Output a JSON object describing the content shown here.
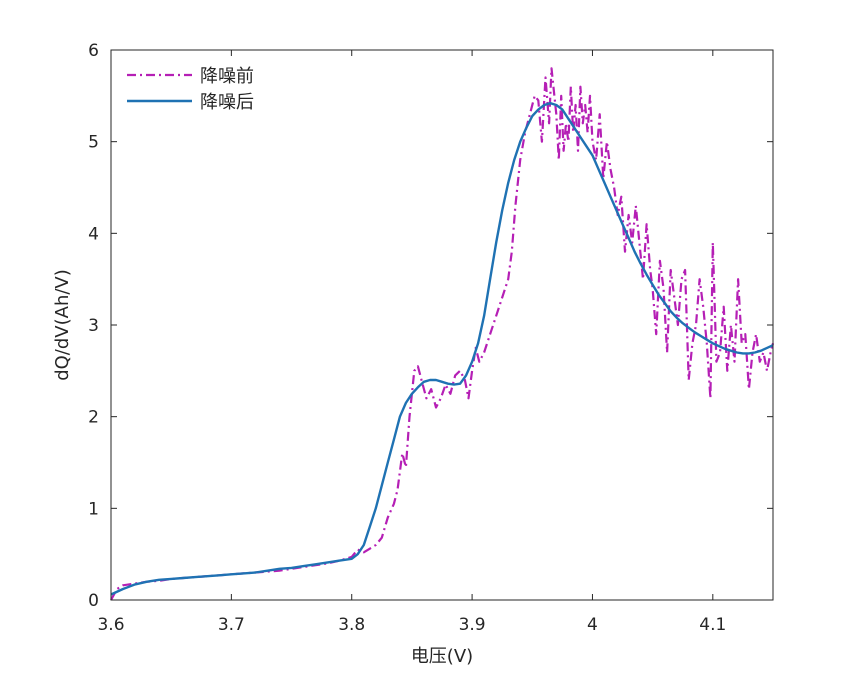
{
  "colors": {
    "before": "#B51FB5",
    "after": "#1F72B3",
    "axis": "#262626",
    "background": "#FFFFFF"
  },
  "chart_data": {
    "type": "line",
    "title": "",
    "xlabel": "电压(V)",
    "ylabel": "dQ/dV(Ah/V)",
    "xlim": [
      3.6,
      4.15
    ],
    "ylim": [
      0,
      6
    ],
    "xticks": [
      3.6,
      3.7,
      3.8,
      3.9,
      4.0,
      4.1
    ],
    "xtick_labels": [
      "3.6",
      "3.7",
      "3.8",
      "3.9",
      "4",
      "4.1"
    ],
    "yticks": [
      0,
      1,
      2,
      3,
      4,
      5,
      6
    ],
    "ytick_labels": [
      "0",
      "1",
      "2",
      "3",
      "4",
      "5",
      "6"
    ],
    "grid": false,
    "legend_position": "top-left",
    "series": [
      {
        "name": "降噪前",
        "style": "dash-dot",
        "color": "#B51FB5",
        "x": [
          3.6,
          3.605,
          3.61,
          3.62,
          3.63,
          3.64,
          3.65,
          3.66,
          3.67,
          3.68,
          3.69,
          3.7,
          3.71,
          3.72,
          3.73,
          3.74,
          3.75,
          3.76,
          3.77,
          3.78,
          3.79,
          3.8,
          3.805,
          3.81,
          3.815,
          3.82,
          3.825,
          3.83,
          3.835,
          3.838,
          3.842,
          3.845,
          3.848,
          3.852,
          3.855,
          3.858,
          3.862,
          3.866,
          3.87,
          3.874,
          3.878,
          3.882,
          3.886,
          3.89,
          3.894,
          3.897,
          3.9,
          3.903,
          3.906,
          3.91,
          3.915,
          3.92,
          3.925,
          3.93,
          3.933,
          3.936,
          3.94,
          3.944,
          3.948,
          3.952,
          3.955,
          3.958,
          3.961,
          3.964,
          3.966,
          3.968,
          3.97,
          3.972,
          3.974,
          3.976,
          3.978,
          3.98,
          3.982,
          3.984,
          3.986,
          3.988,
          3.99,
          3.992,
          3.994,
          3.996,
          3.998,
          4.0,
          4.003,
          4.006,
          4.009,
          4.012,
          4.015,
          4.018,
          4.021,
          4.024,
          4.027,
          4.03,
          4.033,
          4.036,
          4.039,
          4.042,
          4.045,
          4.048,
          4.05,
          4.053,
          4.056,
          4.059,
          4.062,
          4.065,
          4.068,
          4.071,
          4.074,
          4.077,
          4.08,
          4.083,
          4.086,
          4.089,
          4.092,
          4.095,
          4.098,
          4.1,
          4.103,
          4.106,
          4.109,
          4.112,
          4.115,
          4.118,
          4.121,
          4.124,
          4.127,
          4.13,
          4.133,
          4.136,
          4.139,
          4.142,
          4.145,
          4.148,
          4.15
        ],
        "y": [
          0.0,
          0.12,
          0.16,
          0.18,
          0.2,
          0.21,
          0.23,
          0.24,
          0.25,
          0.26,
          0.27,
          0.28,
          0.29,
          0.3,
          0.31,
          0.32,
          0.34,
          0.36,
          0.38,
          0.4,
          0.43,
          0.47,
          0.55,
          0.52,
          0.56,
          0.6,
          0.68,
          0.9,
          1.05,
          1.2,
          1.6,
          1.45,
          2.0,
          2.5,
          2.55,
          2.4,
          2.2,
          2.3,
          2.1,
          2.2,
          2.35,
          2.25,
          2.45,
          2.5,
          2.4,
          2.2,
          2.5,
          2.75,
          2.6,
          2.7,
          2.9,
          3.1,
          3.3,
          3.5,
          3.8,
          4.3,
          4.8,
          5.1,
          5.3,
          5.5,
          5.45,
          5.0,
          5.7,
          5.2,
          5.8,
          5.55,
          5.3,
          4.8,
          5.5,
          4.9,
          5.2,
          5.0,
          5.6,
          5.1,
          5.4,
          4.9,
          5.6,
          5.2,
          5.4,
          5.1,
          5.5,
          5.0,
          4.8,
          5.3,
          4.6,
          5.0,
          4.7,
          4.5,
          4.2,
          4.4,
          3.8,
          4.2,
          3.9,
          4.3,
          3.9,
          3.5,
          4.1,
          3.6,
          3.4,
          2.9,
          3.7,
          3.4,
          2.7,
          3.6,
          3.3,
          3.0,
          3.5,
          3.6,
          2.4,
          2.8,
          3.0,
          3.5,
          3.2,
          2.8,
          2.2,
          3.9,
          2.6,
          2.7,
          3.2,
          2.5,
          3.0,
          2.6,
          3.5,
          2.8,
          2.9,
          2.3,
          2.7,
          2.9,
          2.6,
          2.7,
          2.5,
          2.7,
          2.8
        ]
      },
      {
        "name": "降噪后",
        "style": "solid",
        "color": "#1F72B3",
        "x": [
          3.6,
          3.61,
          3.62,
          3.63,
          3.64,
          3.65,
          3.66,
          3.67,
          3.68,
          3.69,
          3.7,
          3.71,
          3.72,
          3.73,
          3.74,
          3.75,
          3.76,
          3.77,
          3.78,
          3.79,
          3.8,
          3.805,
          3.81,
          3.815,
          3.82,
          3.825,
          3.83,
          3.835,
          3.84,
          3.845,
          3.85,
          3.855,
          3.86,
          3.865,
          3.87,
          3.875,
          3.88,
          3.885,
          3.89,
          3.895,
          3.9,
          3.905,
          3.91,
          3.915,
          3.92,
          3.925,
          3.93,
          3.935,
          3.94,
          3.945,
          3.95,
          3.955,
          3.96,
          3.965,
          3.97,
          3.975,
          3.98,
          3.985,
          3.99,
          3.995,
          4.0,
          4.005,
          4.01,
          4.015,
          4.02,
          4.025,
          4.03,
          4.035,
          4.04,
          4.045,
          4.05,
          4.055,
          4.06,
          4.065,
          4.07,
          4.075,
          4.08,
          4.085,
          4.09,
          4.095,
          4.1,
          4.105,
          4.11,
          4.115,
          4.12,
          4.125,
          4.13,
          4.135,
          4.14,
          4.145,
          4.15
        ],
        "y": [
          0.06,
          0.12,
          0.17,
          0.2,
          0.22,
          0.23,
          0.24,
          0.25,
          0.26,
          0.27,
          0.28,
          0.29,
          0.3,
          0.32,
          0.34,
          0.35,
          0.37,
          0.39,
          0.41,
          0.43,
          0.45,
          0.5,
          0.6,
          0.8,
          1.0,
          1.25,
          1.5,
          1.75,
          2.0,
          2.15,
          2.25,
          2.32,
          2.38,
          2.4,
          2.4,
          2.38,
          2.36,
          2.35,
          2.36,
          2.45,
          2.6,
          2.8,
          3.1,
          3.5,
          3.9,
          4.25,
          4.55,
          4.8,
          5.0,
          5.15,
          5.28,
          5.35,
          5.4,
          5.42,
          5.4,
          5.35,
          5.25,
          5.15,
          5.05,
          4.95,
          4.85,
          4.7,
          4.55,
          4.4,
          4.25,
          4.1,
          3.95,
          3.8,
          3.67,
          3.55,
          3.44,
          3.33,
          3.24,
          3.15,
          3.08,
          3.02,
          2.97,
          2.92,
          2.88,
          2.84,
          2.8,
          2.77,
          2.74,
          2.72,
          2.7,
          2.69,
          2.69,
          2.7,
          2.72,
          2.75,
          2.78
        ]
      }
    ]
  }
}
